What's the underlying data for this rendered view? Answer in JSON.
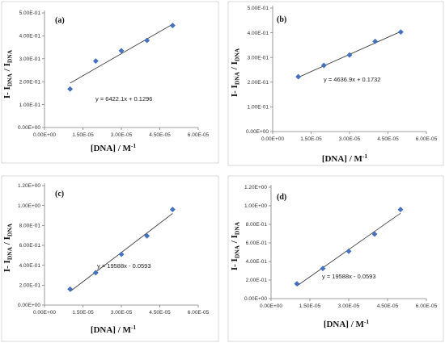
{
  "chart_data": [
    {
      "type": "scatter",
      "panel_label": "(a)",
      "xlabel": "[DNA] / M",
      "xlabel_sup": "-1",
      "ylabel_main": "I- I",
      "ylabel_sub1": "DNA",
      "ylabel_mid": " / I",
      "ylabel_sub2": "DNA",
      "equation": "y = 6422.1x + 0.1296",
      "slope": 6422.1,
      "intercept": 0.1296,
      "xlim": [
        0,
        6e-05
      ],
      "ylim": [
        0,
        0.5
      ],
      "x_ticks": [
        0,
        1.5e-05,
        3e-05,
        4.5e-05,
        6e-05
      ],
      "x_tick_labels": [
        "0.00E+00",
        "1.50E-05",
        "3.00E-05",
        "4.50E-05",
        "6.00E-05"
      ],
      "y_ticks": [
        0,
        0.1,
        0.2,
        0.3,
        0.4,
        0.5
      ],
      "y_tick_labels": [
        "0.00E+00",
        "1.00E-01",
        "2.00E-01",
        "3.00E-01",
        "4.00E-01",
        "5.00E-01"
      ],
      "x": [
        1e-05,
        2e-05,
        3e-05,
        4e-05,
        5e-05
      ],
      "y": [
        0.168,
        0.29,
        0.335,
        0.38,
        0.445
      ],
      "marker_color": "#4472C4"
    },
    {
      "type": "scatter",
      "panel_label": "(b)",
      "xlabel": "[DNA] / M",
      "xlabel_sup": "-1",
      "ylabel_main": "I- I",
      "ylabel_sub1": "DNA",
      "ylabel_mid": " / I",
      "ylabel_sub2": "DNA",
      "equation": "y = 4636.9x + 0.1732",
      "slope": 4636.9,
      "intercept": 0.1732,
      "xlim": [
        0,
        6e-05
      ],
      "ylim": [
        0,
        0.5
      ],
      "x_ticks": [
        0,
        1.5e-05,
        3e-05,
        4.5e-05,
        6e-05
      ],
      "x_tick_labels": [
        "0.00E+00",
        "1.50E-05",
        "3.00E-05",
        "4.50E-05",
        "6.00E-05"
      ],
      "y_ticks": [
        0,
        0.1,
        0.2,
        0.3,
        0.4,
        0.5
      ],
      "y_tick_labels": [
        "0.00E+00",
        "1.00E-01",
        "2.00E-01",
        "3.00E-01",
        "4.00E-01",
        "5.00E-01"
      ],
      "x": [
        1e-05,
        2e-05,
        3e-05,
        4e-05,
        5e-05
      ],
      "y": [
        0.222,
        0.268,
        0.31,
        0.365,
        0.403
      ],
      "marker_color": "#4472C4"
    },
    {
      "type": "scatter",
      "panel_label": "(c)",
      "xlabel": "[DNA] / M",
      "xlabel_sup": "-1",
      "ylabel_main": "I- I",
      "ylabel_sub1": "DNA",
      "ylabel_mid": " / I",
      "ylabel_sub2": "DNA",
      "equation": "y = 19588x - 0.0593",
      "slope": 19588,
      "intercept": -0.0593,
      "xlim": [
        0,
        6e-05
      ],
      "ylim": [
        0,
        1.2
      ],
      "x_ticks": [
        0,
        1.5e-05,
        3e-05,
        4.5e-05,
        6e-05
      ],
      "x_tick_labels": [
        "0.00E+00",
        "1.50E-05",
        "3.00E-05",
        "4.50E-05",
        "6.00E-05"
      ],
      "y_ticks": [
        0,
        0.2,
        0.4,
        0.6,
        0.8,
        1.0,
        1.2
      ],
      "y_tick_labels": [
        "0.00E+00",
        "2.00E-01",
        "4.00E-01",
        "6.00E-01",
        "8.00E-01",
        "1.00E+00",
        "1.20E+00"
      ],
      "x": [
        1e-05,
        2e-05,
        3e-05,
        4e-05,
        5e-05
      ],
      "y": [
        0.16,
        0.325,
        0.51,
        0.695,
        0.96
      ],
      "marker_color": "#4472C4"
    },
    {
      "type": "scatter",
      "panel_label": "(d)",
      "xlabel": "[DNA] / M",
      "xlabel_sup": "-1",
      "ylabel_main": "I- I",
      "ylabel_sub1": "DNA",
      "ylabel_mid": " / I",
      "ylabel_sub2": "DNA",
      "equation": "y = 19588x - 0.0593",
      "slope": 19588,
      "intercept": -0.0593,
      "xlim": [
        0,
        6e-05
      ],
      "ylim": [
        0,
        1.2
      ],
      "x_ticks": [
        0,
        1.5e-05,
        3e-05,
        4.5e-05,
        6e-05
      ],
      "x_tick_labels": [
        "0.00E+00",
        "1.50E-05",
        "3.00E-05",
        "4.50E-05",
        "6.00E-05"
      ],
      "y_ticks": [
        0,
        0.2,
        0.4,
        0.6,
        0.8,
        1.0,
        1.2
      ],
      "y_tick_labels": [
        "0.00E+00",
        "2.00E-01",
        "4.00E-01",
        "6.00E-01",
        "8.00E-01",
        "1.00E+00",
        "1.20E+00"
      ],
      "x": [
        1e-05,
        2e-05,
        3e-05,
        4e-05,
        5e-05
      ],
      "y": [
        0.16,
        0.325,
        0.51,
        0.695,
        0.96
      ],
      "marker_color": "#4472C4"
    }
  ]
}
